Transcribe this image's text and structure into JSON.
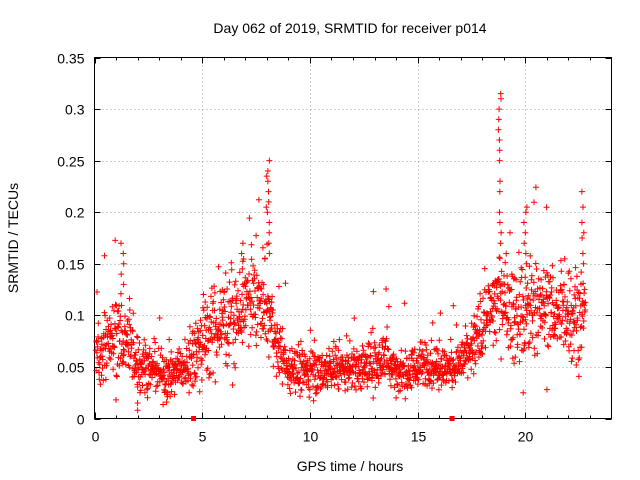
{
  "chart_data": {
    "type": "scatter",
    "title": "Day 062 of 2019, SRMTID for receiver p014",
    "xlabel": "GPS time / hours",
    "ylabel": "SRMTID / TECUs",
    "xlim": [
      0,
      24
    ],
    "ylim": [
      0,
      0.35
    ],
    "x_ticks": [
      0,
      5,
      10,
      15,
      20
    ],
    "x_tick_labels": [
      "0",
      "5",
      "10",
      "15",
      "20"
    ],
    "y_ticks": [
      0,
      0.05,
      0.1,
      0.15,
      0.2,
      0.25,
      0.3,
      0.35
    ],
    "y_tick_labels": [
      "0",
      "0.05",
      "0.1",
      "0.15",
      "0.2",
      "0.25",
      "0.3",
      "0.35"
    ],
    "grid": true,
    "marker": "+",
    "color": "#ff0000",
    "envelope": {
      "note": "Approximate data read from the plot: x = hours, y = [typical low, typical center, typical high] in TECU",
      "x": [
        0,
        0.5,
        1,
        1.5,
        2,
        2.5,
        3,
        3.5,
        4,
        4.5,
        5,
        5.5,
        6,
        6.5,
        7,
        7.5,
        8,
        8.5,
        9,
        9.5,
        10,
        10.5,
        11,
        11.5,
        12,
        12.5,
        13,
        13.5,
        14,
        14.5,
        15,
        15.5,
        16,
        16.5,
        17,
        17.5,
        18,
        18.5,
        19,
        19.5,
        20,
        20.5,
        21,
        21.5,
        22,
        22.5,
        22.8
      ],
      "center": [
        0.06,
        0.07,
        0.08,
        0.075,
        0.055,
        0.05,
        0.045,
        0.04,
        0.05,
        0.055,
        0.075,
        0.085,
        0.095,
        0.1,
        0.11,
        0.115,
        0.105,
        0.07,
        0.05,
        0.045,
        0.045,
        0.045,
        0.05,
        0.045,
        0.05,
        0.05,
        0.055,
        0.06,
        0.045,
        0.045,
        0.05,
        0.055,
        0.05,
        0.05,
        0.055,
        0.065,
        0.09,
        0.11,
        0.12,
        0.1,
        0.1,
        0.105,
        0.11,
        0.1,
        0.105,
        0.1,
        0.11
      ],
      "spread": [
        0.025,
        0.03,
        0.035,
        0.035,
        0.025,
        0.02,
        0.02,
        0.02,
        0.02,
        0.025,
        0.035,
        0.04,
        0.04,
        0.04,
        0.035,
        0.035,
        0.04,
        0.025,
        0.02,
        0.02,
        0.02,
        0.02,
        0.02,
        0.02,
        0.02,
        0.02,
        0.025,
        0.025,
        0.02,
        0.02,
        0.02,
        0.02,
        0.02,
        0.02,
        0.02,
        0.025,
        0.035,
        0.04,
        0.04,
        0.04,
        0.04,
        0.04,
        0.035,
        0.035,
        0.04,
        0.04,
        0.045
      ]
    },
    "spikes": [
      {
        "x": 8.05,
        "ys": [
          0.16,
          0.17,
          0.18,
          0.19,
          0.2,
          0.205,
          0.21,
          0.22,
          0.23,
          0.235,
          0.24,
          0.25
        ]
      },
      {
        "x": 18.8,
        "ys": [
          0.17,
          0.18,
          0.19,
          0.2,
          0.22,
          0.23,
          0.25,
          0.26,
          0.27,
          0.28,
          0.29,
          0.3,
          0.31,
          0.315
        ]
      },
      {
        "x": 20.0,
        "ys": [
          0.15,
          0.16,
          0.17,
          0.18,
          0.19,
          0.2,
          0.205
        ]
      },
      {
        "x": 22.7,
        "ys": [
          0.15,
          0.16,
          0.175,
          0.18,
          0.19,
          0.205,
          0.22
        ]
      },
      {
        "x": 1.3,
        "ys": [
          0.13,
          0.14,
          0.15,
          0.16,
          0.17
        ]
      },
      {
        "x": 6.9,
        "ys": [
          0.13,
          0.145,
          0.16,
          0.17
        ]
      }
    ],
    "outliers": [
      {
        "x": 2.0,
        "y": 0.008
      },
      {
        "x": 2.0,
        "y": 0.015
      },
      {
        "x": 1.0,
        "y": 0.018
      },
      {
        "x": 21.0,
        "y": 0.028
      },
      {
        "x": 19.9,
        "y": 0.025
      },
      {
        "x": 14.0,
        "y": 0.02
      },
      {
        "x": 16.6,
        "y": 0.03
      }
    ],
    "data_gap_markers": [
      4.6,
      16.6
    ]
  }
}
